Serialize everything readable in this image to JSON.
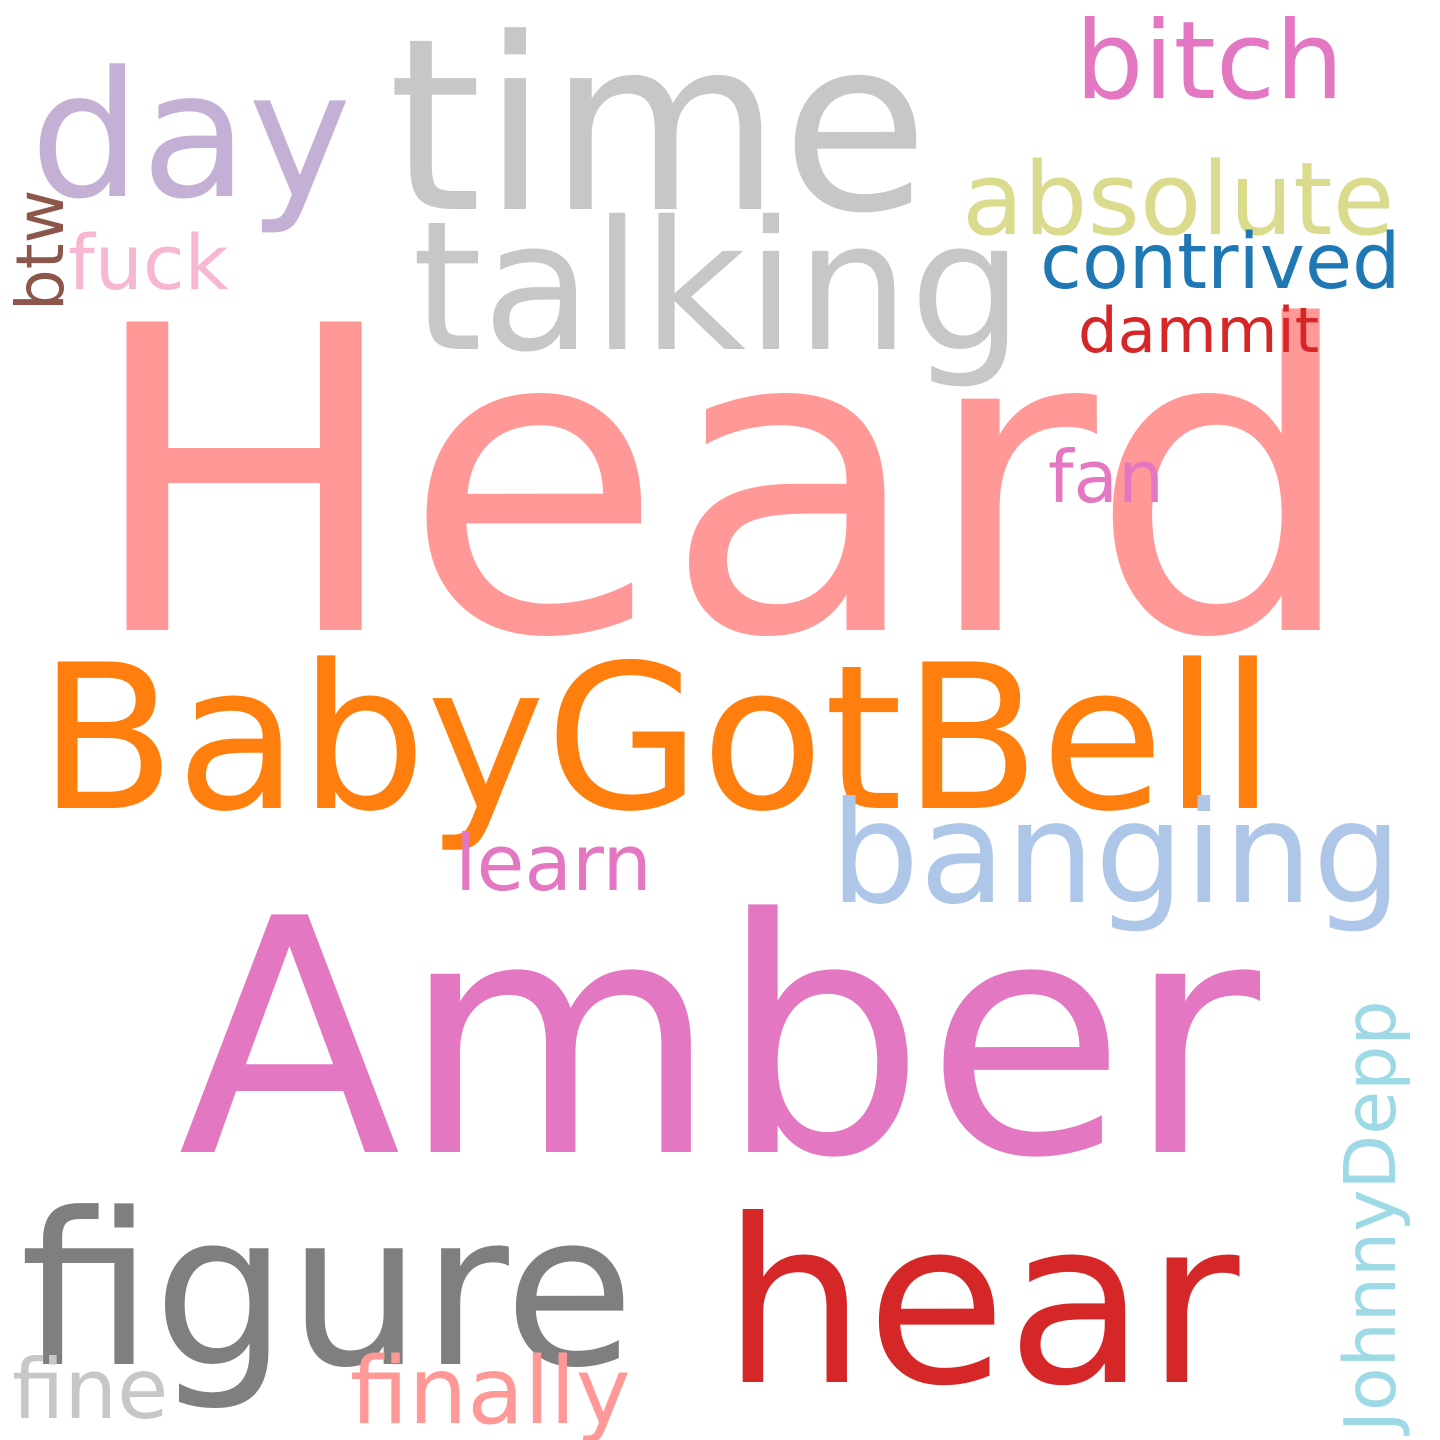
{
  "background_color": "#ffffff",
  "words": [
    {
      "key": "heard",
      "text": "Heard",
      "color": "#ff9896",
      "orientation": "horizontal"
    },
    {
      "key": "amber",
      "text": "Amber",
      "color": "#e377c2",
      "orientation": "horizontal"
    },
    {
      "key": "time",
      "text": "time",
      "color": "#c7c7c7",
      "orientation": "horizontal"
    },
    {
      "key": "day",
      "text": "day",
      "color": "#c5b0d5",
      "orientation": "horizontal"
    },
    {
      "key": "babygotbell",
      "text": "BabyGotBell",
      "color": "#ff7f0e",
      "orientation": "horizontal"
    },
    {
      "key": "hear",
      "text": "hear",
      "color": "#d62728",
      "orientation": "horizontal"
    },
    {
      "key": "figure",
      "text": "figure",
      "color": "#7f7f7f",
      "orientation": "horizontal"
    },
    {
      "key": "talking",
      "text": "talking",
      "color": "#c7c7c7",
      "orientation": "horizontal"
    },
    {
      "key": "banging",
      "text": "banging",
      "color": "#aec7e8",
      "orientation": "horizontal"
    },
    {
      "key": "absolute",
      "text": "absolute",
      "color": "#dbdb8d",
      "orientation": "horizontal"
    },
    {
      "key": "bitch",
      "text": "bitch",
      "color": "#e377c2",
      "orientation": "horizontal"
    },
    {
      "key": "contrived",
      "text": "contrived",
      "color": "#1f77b4",
      "orientation": "horizontal"
    },
    {
      "key": "dammit",
      "text": "dammit",
      "color": "#d62728",
      "orientation": "horizontal"
    },
    {
      "key": "fuck",
      "text": "fuck",
      "color": "#f7b6d2",
      "orientation": "horizontal"
    },
    {
      "key": "btw",
      "text": "btw",
      "color": "#8c564b",
      "orientation": "vertical"
    },
    {
      "key": "fan",
      "text": "fan",
      "color": "#e377c2",
      "orientation": "horizontal"
    },
    {
      "key": "learn",
      "text": "learn",
      "color": "#e377c2",
      "orientation": "horizontal"
    },
    {
      "key": "johnnydepp",
      "text": "JohnnyDepp",
      "color": "#9edae5",
      "orientation": "vertical"
    },
    {
      "key": "finally",
      "text": "finally",
      "color": "#ff9896",
      "orientation": "horizontal"
    },
    {
      "key": "fine",
      "text": "fine",
      "color": "#c7c7c7",
      "orientation": "horizontal"
    }
  ]
}
